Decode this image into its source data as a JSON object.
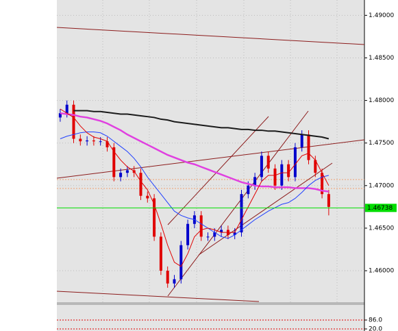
{
  "chart_data": {
    "type": "candlestick",
    "categories": [
      null,
      null,
      null,
      null,
      null,
      null,
      null,
      null,
      null,
      null,
      null,
      null,
      null,
      null,
      null,
      null,
      null,
      null,
      null,
      null,
      null,
      null,
      null,
      null,
      null,
      null,
      null,
      null,
      null,
      null,
      null,
      null,
      null,
      null,
      null,
      null,
      null,
      null,
      null,
      null,
      null
    ],
    "open": [
      1.478,
      1.4785,
      1.4795,
      1.4755,
      1.4752,
      1.4753,
      1.4752,
      1.4752,
      1.4745,
      1.471,
      1.4715,
      1.4718,
      1.4715,
      1.4688,
      1.4685,
      1.464,
      1.46,
      1.4585,
      1.459,
      1.463,
      1.4655,
      1.4665,
      1.464,
      1.464,
      1.4645,
      1.4648,
      1.4642,
      1.4645,
      1.469,
      1.47,
      1.471,
      1.4735,
      1.472,
      1.47,
      1.4725,
      1.471,
      1.4745,
      1.476,
      1.473,
      1.4715,
      1.469
    ],
    "high": [
      1.479,
      1.48,
      1.48,
      1.476,
      1.4758,
      1.4758,
      1.4757,
      1.4757,
      1.475,
      1.472,
      1.4723,
      1.4723,
      1.472,
      1.4693,
      1.469,
      1.4645,
      1.4605,
      1.4595,
      1.4635,
      1.466,
      1.467,
      1.467,
      1.4645,
      1.465,
      1.4653,
      1.4653,
      1.465,
      1.4695,
      1.4705,
      1.4715,
      1.474,
      1.474,
      1.4725,
      1.473,
      1.473,
      1.475,
      1.4765,
      1.4765,
      1.4735,
      1.472,
      1.4695
    ],
    "low": [
      1.4775,
      1.478,
      1.475,
      1.4747,
      1.4747,
      1.4747,
      1.4747,
      1.474,
      1.4705,
      1.4705,
      1.471,
      1.471,
      1.4683,
      1.468,
      1.4635,
      1.4595,
      1.458,
      1.458,
      1.4585,
      1.4625,
      1.465,
      1.4635,
      1.4635,
      1.4635,
      1.464,
      1.4637,
      1.4637,
      1.464,
      1.4685,
      1.4695,
      1.4705,
      1.4715,
      1.4695,
      1.4695,
      1.4705,
      1.4705,
      1.474,
      1.4725,
      1.471,
      1.4685,
      1.4665
    ],
    "close": [
      1.4785,
      1.4795,
      1.4755,
      1.4752,
      1.4753,
      1.4752,
      1.4752,
      1.4745,
      1.471,
      1.4715,
      1.4718,
      1.4715,
      1.4688,
      1.4685,
      1.464,
      1.46,
      1.4585,
      1.459,
      1.463,
      1.4655,
      1.4665,
      1.464,
      1.464,
      1.4645,
      1.4648,
      1.4642,
      1.4645,
      1.469,
      1.47,
      1.471,
      1.4735,
      1.472,
      1.47,
      1.4725,
      1.471,
      1.4745,
      1.476,
      1.473,
      1.4715,
      1.469,
      1.4675
    ],
    "up_color": "#0000cc",
    "down_color": "#e00000",
    "series": [
      {
        "color": "#1a1a1a",
        "width": 2,
        "values": [
          null,
          null,
          1.4788,
          1.4788,
          1.4788,
          1.4787,
          1.4787,
          1.4786,
          1.4785,
          1.4784,
          1.4784,
          1.4783,
          1.4782,
          1.4781,
          1.478,
          1.4778,
          1.4777,
          1.4775,
          1.4774,
          1.4773,
          1.4772,
          1.4771,
          1.477,
          1.4769,
          1.4768,
          1.4768,
          1.4767,
          1.4766,
          1.4766,
          1.4765,
          1.4765,
          1.4764,
          1.4764,
          1.4763,
          1.4762,
          1.4761,
          1.476,
          1.4759,
          1.4758,
          1.4757,
          1.4755
        ]
      },
      {
        "color": "#e040e0",
        "width": 2.5,
        "values": [
          1.4785,
          1.4784,
          1.4783,
          1.4781,
          1.478,
          1.4778,
          1.4776,
          1.4773,
          1.4769,
          1.4765,
          1.476,
          1.4756,
          1.4752,
          1.4748,
          1.4744,
          1.474,
          1.4736,
          1.4733,
          1.473,
          1.4727,
          1.4725,
          1.4722,
          1.4719,
          1.4716,
          1.4713,
          1.471,
          1.4707,
          1.4704,
          1.4702,
          1.47,
          1.4699,
          1.4699,
          1.4698,
          1.4698,
          1.4698,
          1.4697,
          1.4697,
          1.4697,
          1.4696,
          1.4694,
          1.4693
        ]
      },
      {
        "color": "#2040ff",
        "width": 1,
        "values": [
          1.4755,
          1.4758,
          1.476,
          1.4762,
          1.4763,
          1.4763,
          1.4762,
          1.4758,
          1.4752,
          1.4746,
          1.474,
          1.4732,
          1.4722,
          1.471,
          1.47,
          1.469,
          1.468,
          1.467,
          1.4665,
          1.4662,
          1.466,
          1.4655,
          1.465,
          1.4645,
          1.464,
          1.4638,
          1.4642,
          1.4648,
          1.4654,
          1.466,
          1.4665,
          1.467,
          1.4674,
          1.4678,
          1.468,
          1.4685,
          1.4692,
          1.47,
          1.4706,
          1.471,
          1.4712
        ]
      },
      {
        "color": "#e00000",
        "width": 1,
        "values": [
          1.479,
          1.4785,
          1.478,
          1.477,
          1.4762,
          1.4757,
          1.4755,
          1.4752,
          1.474,
          1.473,
          1.4722,
          1.4717,
          1.4705,
          1.4695,
          1.4678,
          1.4655,
          1.463,
          1.461,
          1.4605,
          1.462,
          1.464,
          1.4648,
          1.465,
          1.4648,
          1.4645,
          1.4645,
          1.4645,
          1.466,
          1.4675,
          1.469,
          1.4705,
          1.4712,
          1.4712,
          1.4715,
          1.4715,
          1.4725,
          1.4735,
          1.4738,
          1.473,
          1.4715,
          1.47
        ]
      }
    ],
    "current_price": {
      "value": 1.46738,
      "label": "1.46738",
      "color": "#00dd00"
    },
    "ylim": [
      1.4563,
      1.4918
    ],
    "yticks": [
      {
        "value": 1.46,
        "label": "1.46000"
      },
      {
        "value": 1.465,
        "label": "1.46500"
      },
      {
        "value": 1.47,
        "label": "1.47000"
      },
      {
        "value": 1.475,
        "label": "1.47500"
      },
      {
        "value": 1.48,
        "label": "1.48000"
      },
      {
        "value": 1.485,
        "label": "1.48500"
      },
      {
        "value": 1.49,
        "label": "1.49000"
      }
    ],
    "grid": true,
    "indicator": {
      "ylim": [
        4.8,
        197.7
      ],
      "yticks": [
        {
          "value": 86,
          "label": "86.0"
        },
        {
          "value": 20,
          "label": "20.0"
        }
      ]
    }
  }
}
